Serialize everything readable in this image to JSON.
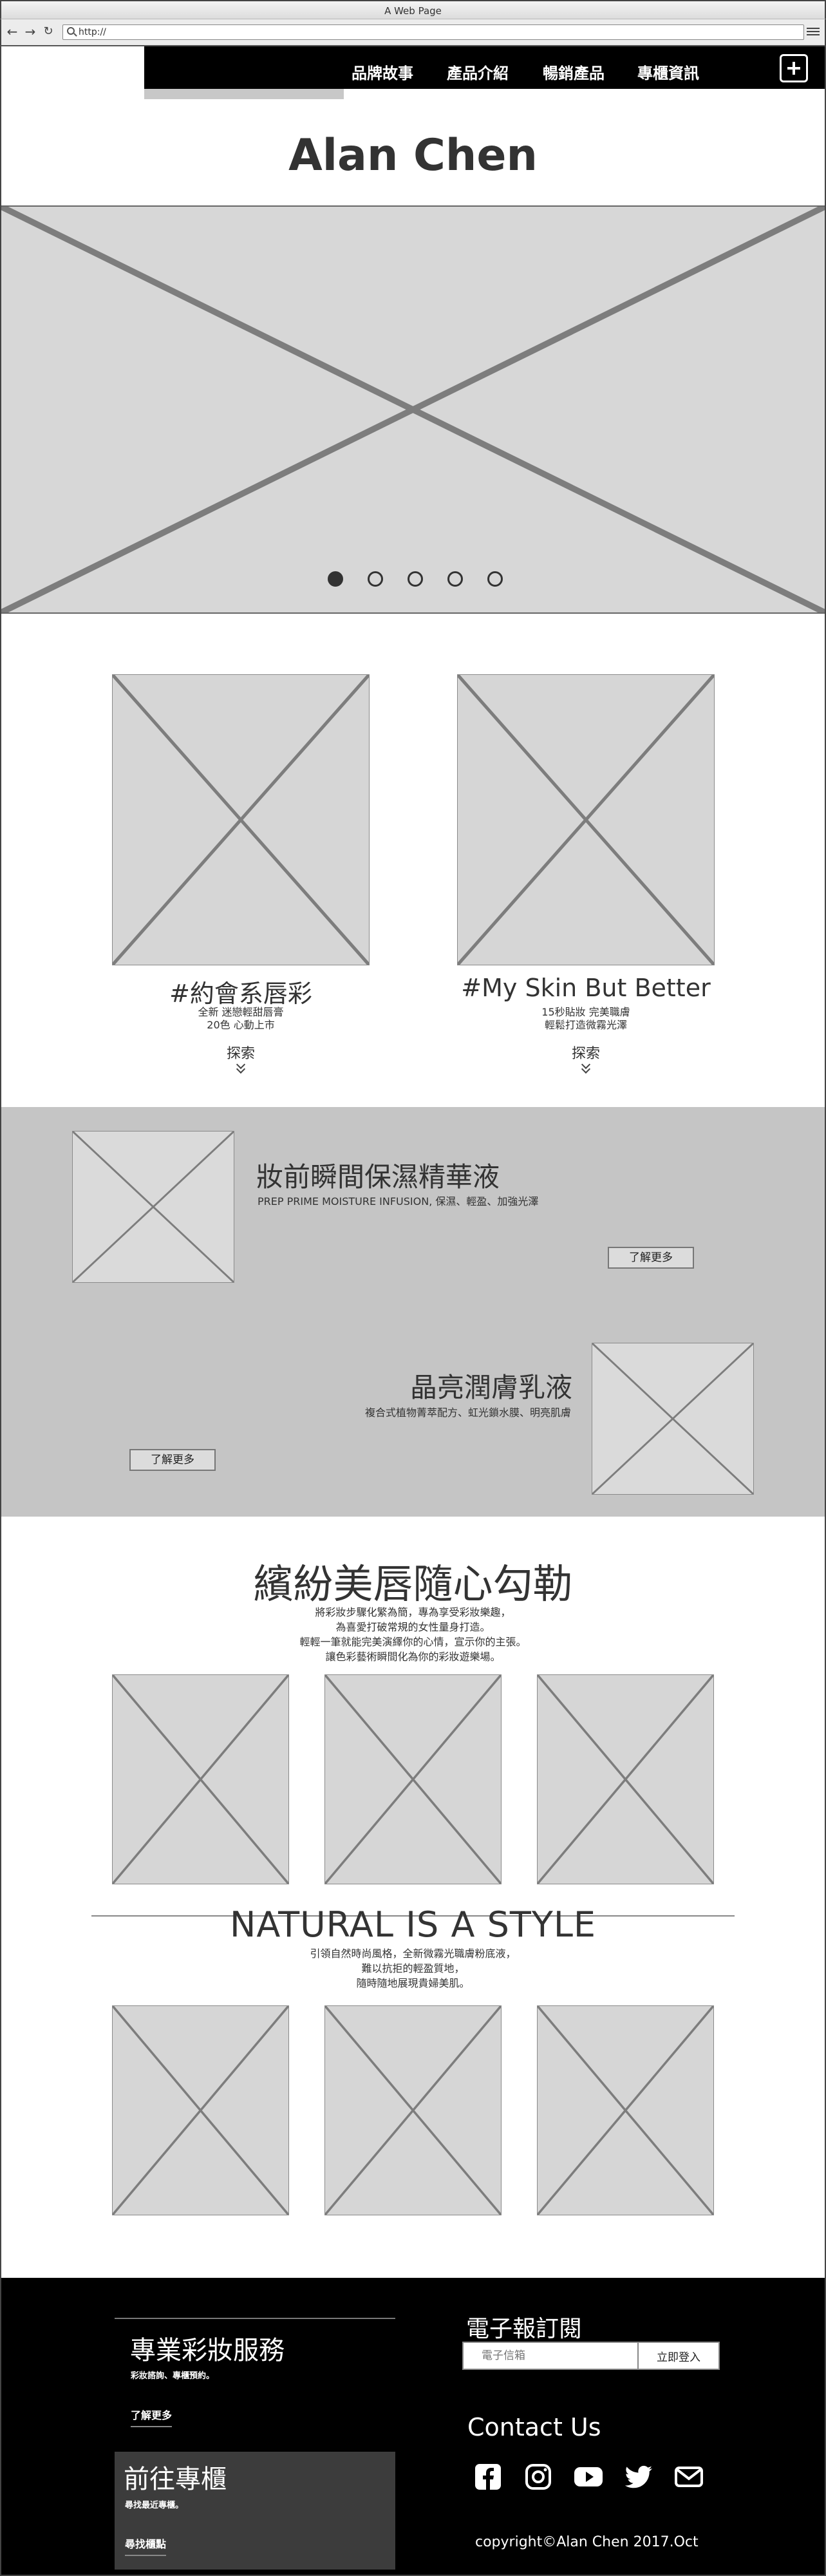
{
  "browser": {
    "window_title": "A Web Page",
    "url": "http://"
  },
  "nav": {
    "items": [
      "品牌故事",
      "產品介紹",
      "暢銷產品",
      "專櫃資訊"
    ]
  },
  "site_title": "Alan Chen",
  "carousel": {
    "slide_count": 5,
    "active_index": 0
  },
  "products": [
    {
      "title": "#約會系唇彩",
      "lines": [
        "全新 迷戀輕甜唇膏",
        "20色 心動上市"
      ],
      "cta": "探索"
    },
    {
      "title": "#My Skin But Better",
      "lines": [
        "15秒貼妝 完美職膚",
        "輕鬆打造微霧光澤"
      ],
      "cta": "探索"
    }
  ],
  "band": {
    "item1": {
      "title": "妝前瞬間保濕精華液",
      "subtitle": "PREP PRIME MOISTURE INFUSION, 保濕、輕盈、加強光澤",
      "button": "了解更多"
    },
    "item2": {
      "title": "晶亮潤膚乳液",
      "subtitle": "複合式植物菁萃配方、虹光鎖水膜、明亮肌膚",
      "button": "了解更多"
    }
  },
  "lips": {
    "title": "繽紛美唇隨心勾勒",
    "lines": [
      "將彩妝步驟化繁為簡，專為享受彩妝樂趣，",
      "為喜愛打破常規的女性量身打造。",
      "輕輕一筆就能完美演繹你的心情，宣示你的主張。",
      "讓色彩藝術瞬間化為你的彩妝遊樂場。"
    ]
  },
  "natural": {
    "title": "NATURAL IS A STYLE",
    "lines": [
      "引領自然時尚風格，全新微霧光職膚粉底液，",
      "難以抗拒的輕盈質地，",
      "隨時隨地展現貴婦美肌。"
    ]
  },
  "footer": {
    "service_title": "專業彩妝服務",
    "service_text": "彩妝諮詢、專櫃預約。",
    "service_link": "了解更多",
    "store_title": "前往專櫃",
    "store_text": "尋找最近專櫃。",
    "store_link": "尋找櫃點",
    "newsletter_title": "電子報訂閱",
    "email_placeholder": "電子信箱",
    "subscribe_button": "立即登入",
    "contact_title": "Contact Us",
    "social_icons": [
      "facebook-icon",
      "instagram-icon",
      "youtube-icon",
      "twitter-icon",
      "mail-icon"
    ],
    "copyright": "copyright©Alan Chen 2017.Oct"
  }
}
